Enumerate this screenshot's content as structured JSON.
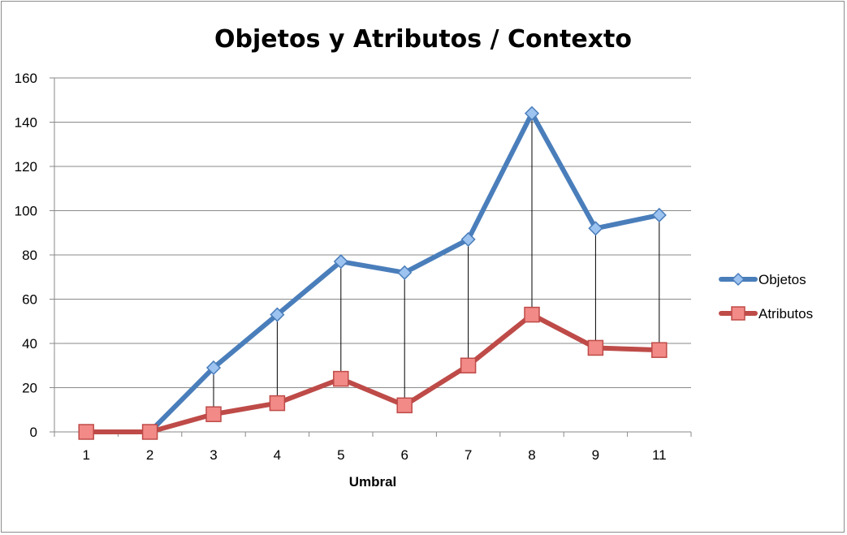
{
  "chart_data": {
    "type": "line",
    "title": "Objetos y Atributos / Contexto",
    "xlabel": "Umbral",
    "ylabel": "",
    "categories": [
      "1",
      "2",
      "3",
      "4",
      "5",
      "6",
      "7",
      "8",
      "9",
      "11"
    ],
    "ylim": [
      0,
      160
    ],
    "yticks": [
      0,
      20,
      40,
      60,
      80,
      100,
      120,
      140,
      160
    ],
    "grid": true,
    "legend_position": "right",
    "drop_lines": true,
    "series": [
      {
        "name": "Objetos",
        "color": "#4a7ebb",
        "marker": "diamond",
        "values": [
          0,
          0,
          29,
          53,
          77,
          72,
          87,
          144,
          92,
          98
        ]
      },
      {
        "name": "Atributos",
        "color": "#be4b48",
        "marker": "square",
        "values": [
          0,
          0,
          8,
          13,
          24,
          12,
          30,
          53,
          38,
          37
        ]
      }
    ]
  }
}
